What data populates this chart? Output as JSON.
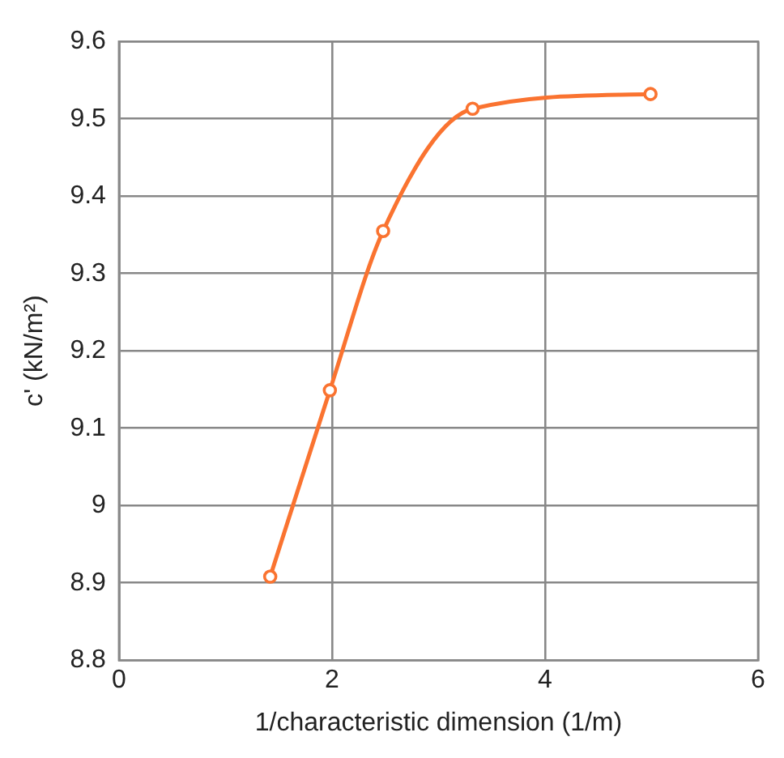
{
  "chart_data": {
    "type": "line",
    "xlabel": "1/characteristic dimension (1/m)",
    "ylabel": "c' (kN/m²)",
    "x": [
      1.42,
      1.98,
      2.48,
      3.32,
      4.99
    ],
    "series": [
      {
        "color": "#fa7330",
        "values": [
          8.908,
          9.149,
          9.355,
          9.513,
          9.532
        ]
      }
    ],
    "xlim": [
      0,
      6
    ],
    "xticks": [
      0,
      2,
      4,
      6
    ],
    "ylim": [
      8.8,
      9.6
    ],
    "yticks": [
      8.8,
      8.9,
      9,
      9.1,
      9.2,
      9.3,
      9.4,
      9.5,
      9.6
    ],
    "grid": true,
    "legend": false,
    "marker": "circle",
    "line_style": "solid"
  }
}
